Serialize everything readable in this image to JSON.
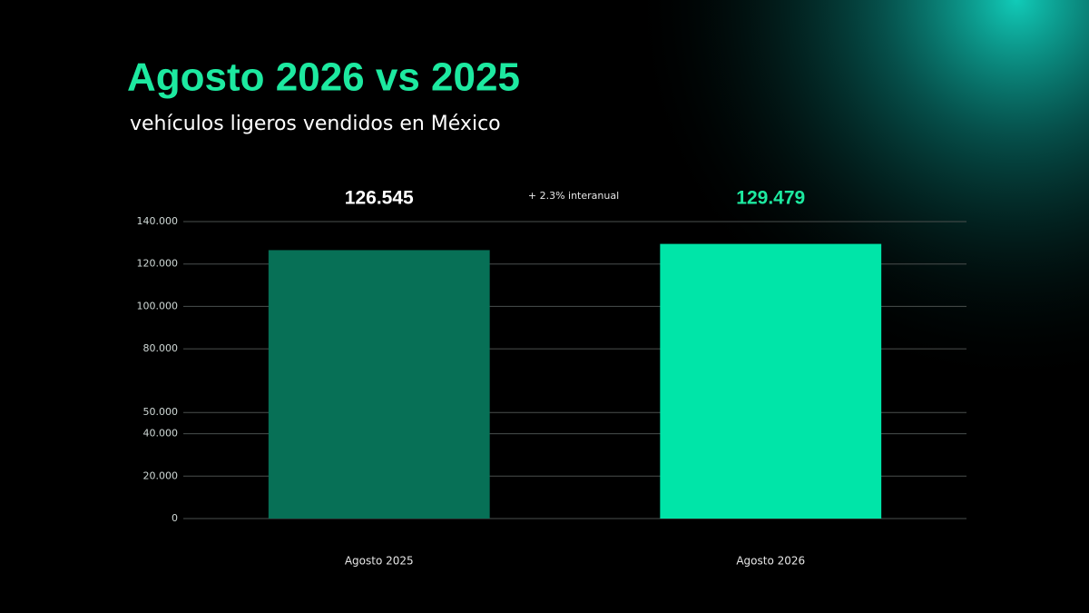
{
  "chart_data": {
    "type": "bar",
    "title": "Agosto 2026 vs 2025",
    "subtitle": "vehículos ligeros vendidos en México",
    "annotation": "+ 2.3% interanual",
    "categories": [
      "Agosto 2025",
      "Agosto 2026"
    ],
    "values": [
      126545,
      129479
    ],
    "value_labels": [
      "126.545",
      "129.479"
    ],
    "colors": [
      "#077056",
      "#00e5a8"
    ],
    "label_colors": [
      "#ffffff",
      "#1de9a0"
    ],
    "ylim": [
      0,
      140000
    ],
    "yticks": [
      0,
      {
        "value": 20000,
        "label": "20.000"
      },
      {
        "value": 40000,
        "label": "40.000"
      },
      {
        "value": 50000,
        "label": "50.000"
      },
      {
        "value": 80000,
        "label": "80.000"
      },
      {
        "value": 100000,
        "label": "100.000"
      },
      {
        "value": 120000,
        "label": "120.000"
      },
      {
        "value": 140000,
        "label": "140.000"
      }
    ],
    "grid": true
  }
}
